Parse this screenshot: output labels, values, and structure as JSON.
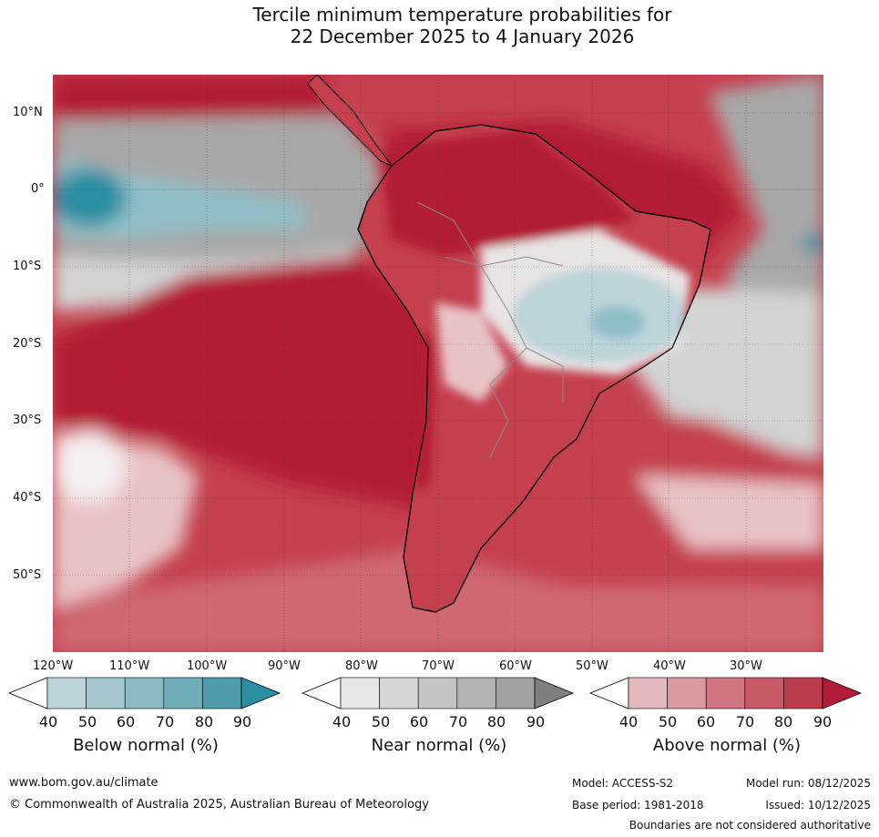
{
  "title": {
    "line1": "Tercile minimum temperature probabilities for",
    "line2": "22 December 2025 to 4 January 2026"
  },
  "map": {
    "lat_labels": [
      "10°N",
      "0°",
      "10°S",
      "20°S",
      "30°S",
      "40°S",
      "50°S"
    ],
    "lon_labels": [
      "120°W",
      "110°W",
      "100°W",
      "90°W",
      "80°W",
      "70°W",
      "60°W",
      "50°W",
      "40°W",
      "30°W"
    ],
    "colors": {
      "above_90": "#b31c36",
      "above_80": "#c5404f",
      "above_70": "#cf6872",
      "above_60": "#db9aa0",
      "above_50": "#e8c3c6",
      "near_90": "#7f7f7f",
      "near_70": "#a8a8a8",
      "near_50": "#d3d3d3",
      "below_50": "#bcd4da",
      "below_70": "#8fbec7",
      "below_90": "#2b8fa3",
      "land_border": "#000000",
      "country_border": "#8c8c8c"
    }
  },
  "legend": {
    "tick_values": [
      "40",
      "50",
      "60",
      "70",
      "80",
      "90"
    ],
    "below": {
      "title": "Below normal (%)",
      "colors": [
        "#bcd4da",
        "#a4c7ce",
        "#8cbac3",
        "#6fadb9",
        "#4c9cac",
        "#2b8fa3"
      ]
    },
    "near": {
      "title": "Near normal (%)",
      "colors": [
        "#e6e6e6",
        "#d6d6d6",
        "#c4c4c4",
        "#b3b3b3",
        "#a1a1a1",
        "#7f7f7f"
      ]
    },
    "above": {
      "title": "Above normal (%)",
      "colors": [
        "#e3b8bc",
        "#da9aa0",
        "#cf7480",
        "#c65a66",
        "#bb3c4d",
        "#b31c36"
      ]
    }
  },
  "footer": {
    "url": "www.bom.gov.au/climate",
    "copyright": "© Commonwealth of Australia 2025, Australian Bureau of Meteorology",
    "model": "Model: ACCESS-S2",
    "base_period": "Base period: 1981-2018",
    "model_run": "Model run: 08/12/2025",
    "issued": "Issued: 10/12/2025",
    "disclaimer": "Boundaries are not considered authoritative"
  }
}
